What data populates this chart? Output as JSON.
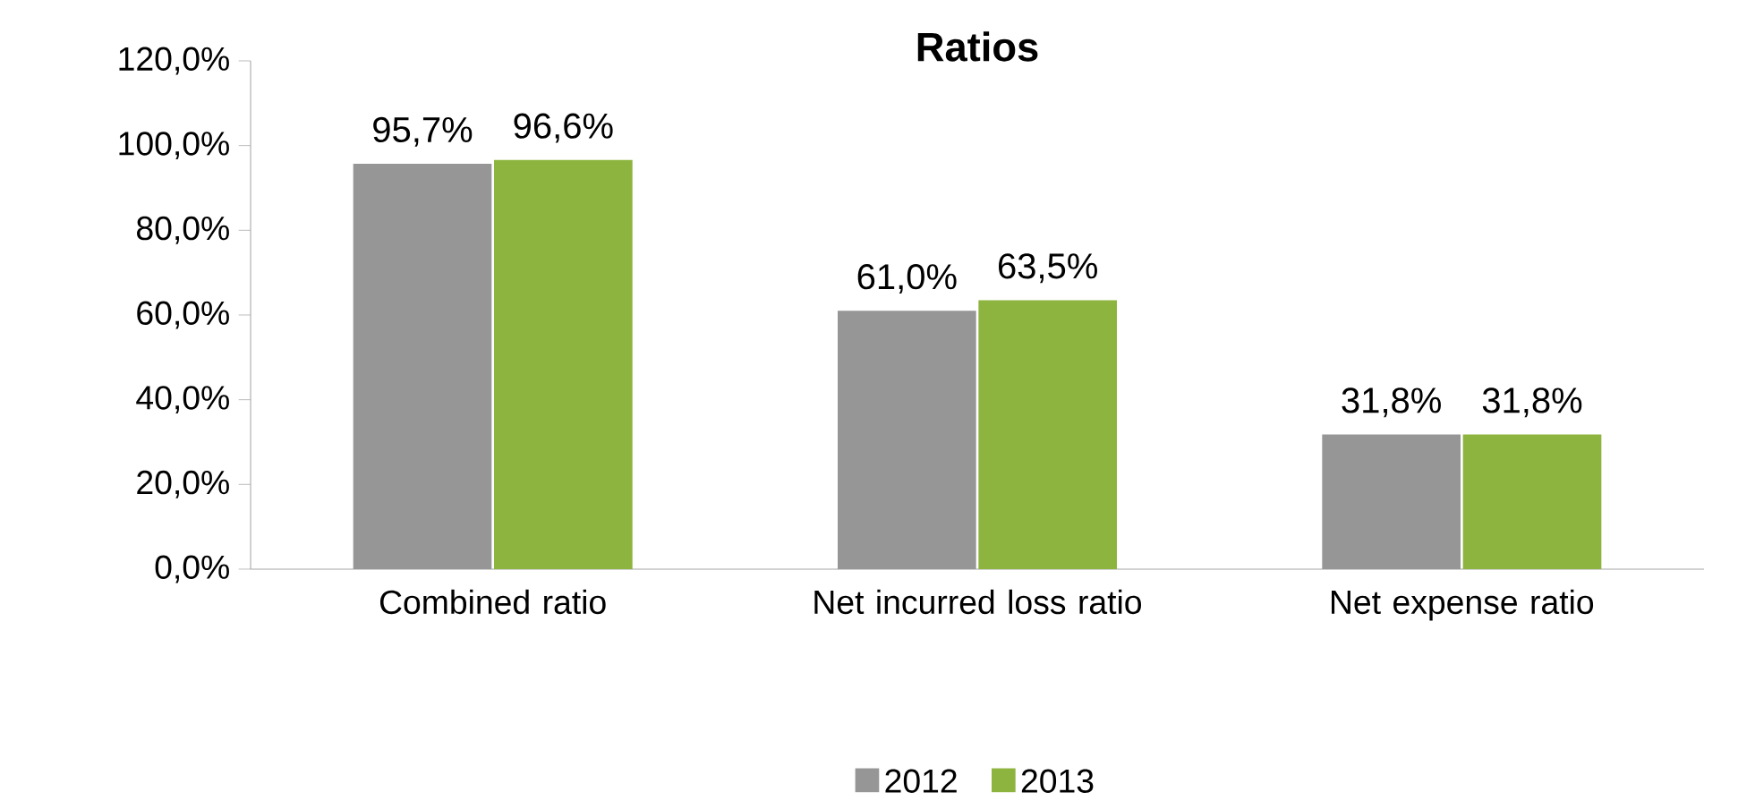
{
  "chart_data": {
    "type": "bar",
    "title": "Ratios",
    "categories": [
      "Combined ratio",
      "Net incurred loss ratio",
      "Net expense ratio"
    ],
    "series": [
      {
        "name": "2012",
        "color": "#969696",
        "values": [
          95.7,
          61.0,
          31.8
        ],
        "value_labels": [
          "95,7%",
          "61,0%",
          "31,8%"
        ]
      },
      {
        "name": "2013",
        "color": "#8db43e",
        "values": [
          96.6,
          63.5,
          31.8
        ],
        "value_labels": [
          "96,6%",
          "63,5%",
          "31,8%"
        ]
      }
    ],
    "ylim": [
      0,
      120
    ],
    "yticks": [
      {
        "value": 0,
        "label": "0,0%"
      },
      {
        "value": 20,
        "label": "20,0%"
      },
      {
        "value": 40,
        "label": "40,0%"
      },
      {
        "value": 60,
        "label": "60,0%"
      },
      {
        "value": 80,
        "label": "80,0%"
      },
      {
        "value": 100,
        "label": "100,0%"
      },
      {
        "value": 120,
        "label": "120,0%"
      }
    ],
    "legend": "bottom"
  }
}
